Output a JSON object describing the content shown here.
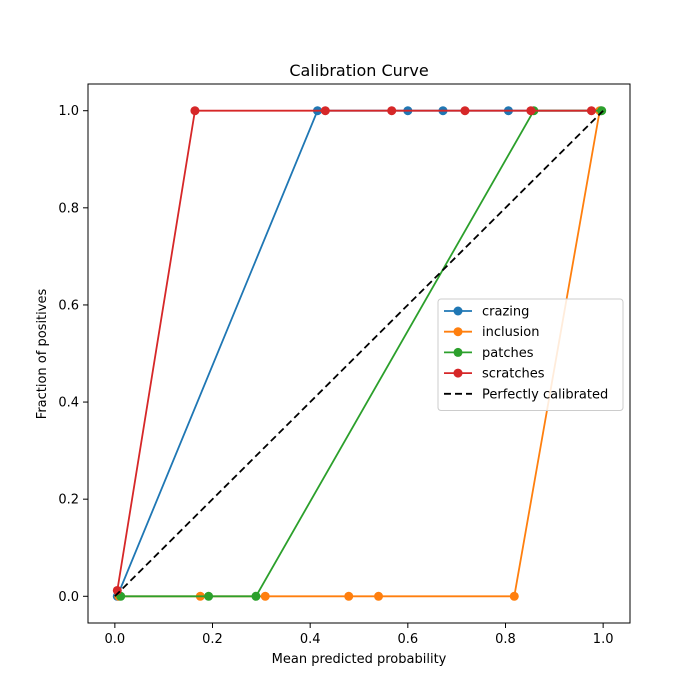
{
  "chart_data": {
    "type": "line",
    "title": "Calibration Curve",
    "xlabel": "Mean predicted probability",
    "ylabel": "Fraction of positives",
    "xlim": [
      -0.055,
      1.055
    ],
    "ylim": [
      -0.055,
      1.055
    ],
    "xticks": [
      "0.0",
      "0.2",
      "0.4",
      "0.6",
      "0.8",
      "1.0"
    ],
    "yticks": [
      "0.0",
      "0.2",
      "0.4",
      "0.6",
      "0.8",
      "1.0"
    ],
    "grid": false,
    "legend_position": "center-right",
    "series": [
      {
        "name": "crazing",
        "color": "#1f77b4",
        "marker": "circle",
        "x": [
          0.005,
          0.415,
          0.6,
          0.672,
          0.806,
          0.995
        ],
        "y": [
          0.0,
          1.0,
          1.0,
          1.0,
          1.0,
          1.0
        ]
      },
      {
        "name": "inclusion",
        "color": "#ff7f0e",
        "marker": "circle",
        "x": [
          0.008,
          0.175,
          0.308,
          0.479,
          0.54,
          0.818,
          0.993
        ],
        "y": [
          0.0,
          0.0,
          0.0,
          0.0,
          0.0,
          0.0,
          1.0
        ]
      },
      {
        "name": "patches",
        "color": "#2ca02c",
        "marker": "circle",
        "x": [
          0.012,
          0.192,
          0.289,
          0.858,
          0.997
        ],
        "y": [
          0.0,
          0.0,
          0.0,
          1.0,
          1.0
        ]
      },
      {
        "name": "scratches",
        "color": "#d62728",
        "marker": "circle",
        "x": [
          0.005,
          0.164,
          0.431,
          0.567,
          0.717,
          0.852,
          0.976
        ],
        "y": [
          0.012,
          1.0,
          1.0,
          1.0,
          1.0,
          1.0,
          1.0
        ]
      },
      {
        "name": "Perfectly calibrated",
        "color": "#000000",
        "marker": "none",
        "dash": "dashed",
        "x": [
          0.0,
          1.0
        ],
        "y": [
          0.0,
          1.0
        ]
      }
    ]
  }
}
